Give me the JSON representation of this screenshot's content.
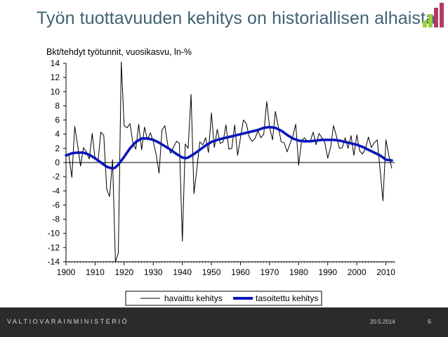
{
  "slide": {
    "title": "Työn tuottavuuden kehitys on historiallisen alhaista",
    "footer_org": "VALTIOVARAINMINISTERIÖ",
    "footer_date": "20.5.2014",
    "page_number": "6"
  },
  "colors": {
    "title": "#3f6272",
    "footer_bg": "#2b2b2b",
    "observed_line": "#000000",
    "smoothed_line": "#0a17b8"
  },
  "chart_data": {
    "type": "line",
    "title": "Bkt/tehdyt työtunnit, vuosikasvu, ln-%",
    "xlim": [
      1900,
      2013
    ],
    "ylim": [
      -14,
      14
    ],
    "x_ticks": [
      1900,
      1910,
      1920,
      1930,
      1940,
      1950,
      1960,
      1970,
      1980,
      1990,
      2000,
      2010
    ],
    "y_ticks": [
      14,
      12,
      10,
      8,
      6,
      4,
      2,
      0,
      -2,
      -4,
      -6,
      -8,
      -10,
      -12,
      -14
    ],
    "grid": false,
    "legend_position": "bottom",
    "series": [
      {
        "name": "havaittu kehitys",
        "x": [
          1901,
          1902,
          1903,
          1904,
          1905,
          1906,
          1907,
          1908,
          1909,
          1910,
          1911,
          1912,
          1913,
          1914,
          1915,
          1916,
          1917,
          1918,
          1919,
          1920,
          1921,
          1922,
          1923,
          1924,
          1925,
          1926,
          1927,
          1928,
          1929,
          1930,
          1931,
          1932,
          1933,
          1934,
          1935,
          1936,
          1937,
          1938,
          1939,
          1940,
          1941,
          1942,
          1943,
          1944,
          1945,
          1946,
          1947,
          1948,
          1949,
          1950,
          1951,
          1952,
          1953,
          1954,
          1955,
          1956,
          1957,
          1958,
          1959,
          1960,
          1961,
          1962,
          1963,
          1964,
          1965,
          1966,
          1967,
          1968,
          1969,
          1970,
          1971,
          1972,
          1973,
          1974,
          1975,
          1976,
          1977,
          1978,
          1979,
          1980,
          1981,
          1982,
          1983,
          1984,
          1985,
          1986,
          1987,
          1988,
          1989,
          1990,
          1991,
          1992,
          1993,
          1994,
          1995,
          1996,
          1997,
          1998,
          1999,
          2000,
          2001,
          2002,
          2003,
          2004,
          2005,
          2006,
          2007,
          2008,
          2009,
          2010,
          2011,
          2012
        ],
        "values": [
          1.0,
          -2.1,
          5.1,
          2.4,
          -0.5,
          2.1,
          1.5,
          0.5,
          4.1,
          0.5,
          0.2,
          4.3,
          3.8,
          -3.8,
          -4.8,
          0.4,
          -14.0,
          -12.8,
          14.2,
          5.2,
          4.9,
          5.5,
          2.7,
          1.9,
          5.4,
          1.8,
          5.0,
          3.2,
          4.2,
          3.0,
          1.1,
          -1.5,
          4.6,
          5.2,
          2.4,
          1.3,
          2.2,
          3.0,
          2.7,
          -11.1,
          2.6,
          2.0,
          9.6,
          -4.4,
          -0.9,
          2.9,
          2.5,
          3.5,
          1.4,
          7.0,
          2.1,
          4.7,
          2.7,
          2.9,
          5.3,
          1.9,
          2.0,
          5.3,
          1.0,
          3.5,
          6.0,
          5.5,
          3.6,
          3.0,
          3.4,
          4.5,
          3.5,
          4.0,
          8.6,
          5.0,
          3.2,
          7.2,
          5.1,
          2.9,
          2.8,
          1.5,
          2.6,
          3.7,
          5.4,
          -0.4,
          3.1,
          3.5,
          3.0,
          3.0,
          4.3,
          2.5,
          4.1,
          3.5,
          2.8,
          0.6,
          2.2,
          5.2,
          3.7,
          2.0,
          2.1,
          3.5,
          2.0,
          3.8,
          1.0,
          3.9,
          1.6,
          1.2,
          2.0,
          3.6,
          2.1,
          2.8,
          3.2,
          -1.0,
          -5.4,
          3.2,
          1.0,
          -0.8
        ]
      },
      {
        "name": "tasoitettu kehitys",
        "x": [
          1900,
          1902,
          1904,
          1906,
          1908,
          1910,
          1912,
          1914,
          1916,
          1917,
          1918,
          1920,
          1922,
          1924,
          1926,
          1928,
          1930,
          1932,
          1934,
          1936,
          1938,
          1940,
          1941,
          1942,
          1944,
          1946,
          1948,
          1950,
          1952,
          1954,
          1956,
          1958,
          1960,
          1962,
          1964,
          1966,
          1968,
          1970,
          1972,
          1974,
          1976,
          1978,
          1980,
          1982,
          1984,
          1986,
          1988,
          1990,
          1992,
          1994,
          1996,
          1998,
          2000,
          2002,
          2004,
          2006,
          2008,
          2010,
          2012
        ],
        "values": [
          1.0,
          1.3,
          1.4,
          1.4,
          1.1,
          0.6,
          0.0,
          -0.6,
          -0.85,
          -0.7,
          -0.3,
          0.8,
          2.0,
          2.9,
          3.4,
          3.4,
          3.2,
          2.8,
          2.3,
          1.8,
          1.2,
          0.7,
          0.6,
          0.7,
          1.2,
          1.8,
          2.4,
          2.9,
          3.2,
          3.4,
          3.6,
          3.8,
          4.0,
          4.2,
          4.4,
          4.6,
          4.9,
          5.0,
          4.9,
          4.5,
          3.9,
          3.4,
          3.1,
          3.0,
          3.0,
          3.1,
          3.2,
          3.2,
          3.2,
          3.1,
          2.9,
          2.7,
          2.5,
          2.2,
          1.8,
          1.4,
          1.0,
          0.4,
          0.3
        ]
      }
    ]
  }
}
